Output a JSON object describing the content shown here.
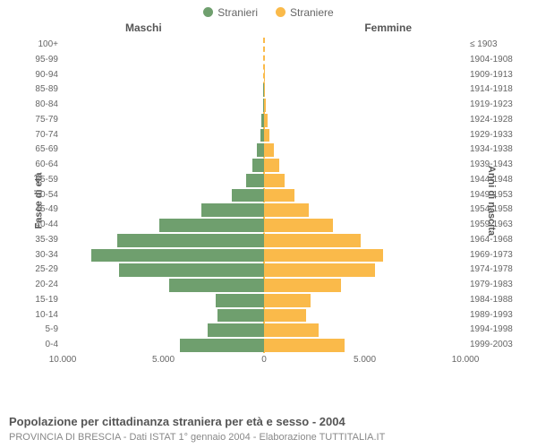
{
  "legend": {
    "items": [
      {
        "label": "Stranieri",
        "color": "#6f9f6e"
      },
      {
        "label": "Straniere",
        "color": "#faba4a"
      }
    ]
  },
  "chart": {
    "type": "population-pyramid",
    "left_title": "Maschi",
    "right_title": "Femmine",
    "y_left_axis_title": "Fasce di età",
    "y_right_axis_title": "Anni di nascita",
    "x_ticks_labels": [
      "10.000",
      "5.000",
      "0",
      "5.000",
      "10.000"
    ],
    "x_ticks_values": [
      -10000,
      -5000,
      0,
      5000,
      10000
    ],
    "x_max": 10000,
    "bar_color_male": "#6f9f6e",
    "bar_color_female": "#faba4a",
    "centerline_color": "#faba4a",
    "background_color": "#ffffff",
    "text_color": "#666666",
    "rows": [
      {
        "age": "100+",
        "year": "≤ 1903",
        "male": 0,
        "female": 0
      },
      {
        "age": "95-99",
        "year": "1904-1908",
        "male": 0,
        "female": 0
      },
      {
        "age": "90-94",
        "year": "1909-1913",
        "male": 10,
        "female": 20
      },
      {
        "age": "85-89",
        "year": "1914-1918",
        "male": 30,
        "female": 40
      },
      {
        "age": "80-84",
        "year": "1919-1923",
        "male": 60,
        "female": 90
      },
      {
        "age": "75-79",
        "year": "1924-1928",
        "male": 120,
        "female": 160
      },
      {
        "age": "70-74",
        "year": "1929-1933",
        "male": 200,
        "female": 280
      },
      {
        "age": "65-69",
        "year": "1934-1938",
        "male": 350,
        "female": 480
      },
      {
        "age": "60-64",
        "year": "1939-1943",
        "male": 600,
        "female": 750
      },
      {
        "age": "55-59",
        "year": "1944-1948",
        "male": 900,
        "female": 1000
      },
      {
        "age": "50-54",
        "year": "1949-1953",
        "male": 1600,
        "female": 1500
      },
      {
        "age": "45-49",
        "year": "1954-1958",
        "male": 3100,
        "female": 2200
      },
      {
        "age": "40-44",
        "year": "1959-1963",
        "male": 5200,
        "female": 3400
      },
      {
        "age": "35-39",
        "year": "1964-1968",
        "male": 7300,
        "female": 4800
      },
      {
        "age": "30-34",
        "year": "1969-1973",
        "male": 8600,
        "female": 5900
      },
      {
        "age": "25-29",
        "year": "1974-1978",
        "male": 7200,
        "female": 5500
      },
      {
        "age": "20-24",
        "year": "1979-1983",
        "male": 4700,
        "female": 3800
      },
      {
        "age": "15-19",
        "year": "1984-1988",
        "male": 2400,
        "female": 2300
      },
      {
        "age": "10-14",
        "year": "1989-1993",
        "male": 2300,
        "female": 2100
      },
      {
        "age": "5-9",
        "year": "1994-1998",
        "male": 2800,
        "female": 2700
      },
      {
        "age": "0-4",
        "year": "1999-2003",
        "male": 4200,
        "female": 4000
      }
    ]
  },
  "caption": {
    "title": "Popolazione per cittadinanza straniera per età e sesso - 2004",
    "subtitle": "PROVINCIA DI BRESCIA - Dati ISTAT 1° gennaio 2004 - Elaborazione TUTTITALIA.IT"
  }
}
